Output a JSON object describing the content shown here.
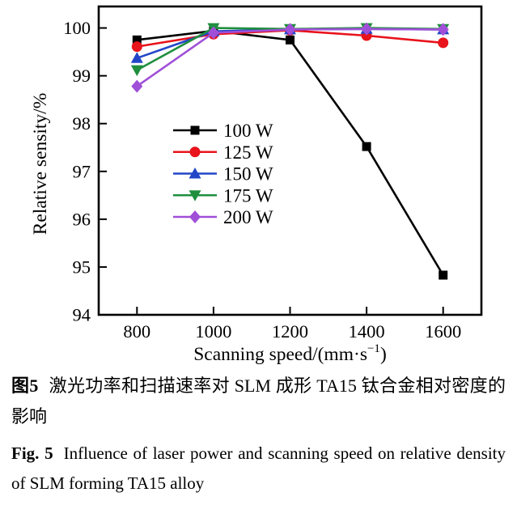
{
  "figure": {
    "caption_zh": {
      "label": "图5",
      "text": "激光功率和扫描速率对 SLM 成形 TA15 钛合金相对密度的影响"
    },
    "caption_en": {
      "label": "Fig. 5",
      "text": "Influence of laser power and scanning speed on relative density of SLM forming TA15 alloy"
    }
  },
  "chart_data": {
    "type": "line",
    "title": "",
    "xlabel": {
      "text": "Scanning speed/(mm·s⁻¹)",
      "pre": "Scanning speed/(mm·s",
      "sup": "−1",
      "post": ")"
    },
    "ylabel": "Relative sensity/%",
    "x": [
      800,
      1000,
      1200,
      1400,
      1600
    ],
    "x_ticks": [
      "800",
      "1000",
      "1200",
      "1400",
      "1600"
    ],
    "y_ticks": [
      "94",
      "95",
      "96",
      "97",
      "98",
      "99",
      "100"
    ],
    "xlim": [
      700,
      1700
    ],
    "ylim": [
      94,
      100.45
    ],
    "grid": false,
    "legend_position": "inside-left-center",
    "series": [
      {
        "name": "100 W",
        "color": "#000000",
        "marker": "square",
        "values": [
          99.75,
          99.94,
          99.75,
          97.52,
          94.83
        ]
      },
      {
        "name": "125 W",
        "color": "#e8131b",
        "marker": "circle",
        "values": [
          99.61,
          99.87,
          99.95,
          99.84,
          99.69
        ]
      },
      {
        "name": "150 W",
        "color": "#2346c8",
        "marker": "triangle-up",
        "values": [
          99.37,
          99.93,
          99.97,
          99.98,
          99.97
        ]
      },
      {
        "name": "175 W",
        "color": "#1f8f3e",
        "marker": "triangle-down",
        "values": [
          99.12,
          100.0,
          99.98,
          100.0,
          99.98
        ]
      },
      {
        "name": "200 W",
        "color": "#a04fd8",
        "marker": "diamond",
        "values": [
          98.78,
          99.9,
          99.97,
          99.98,
          99.97
        ]
      }
    ]
  }
}
